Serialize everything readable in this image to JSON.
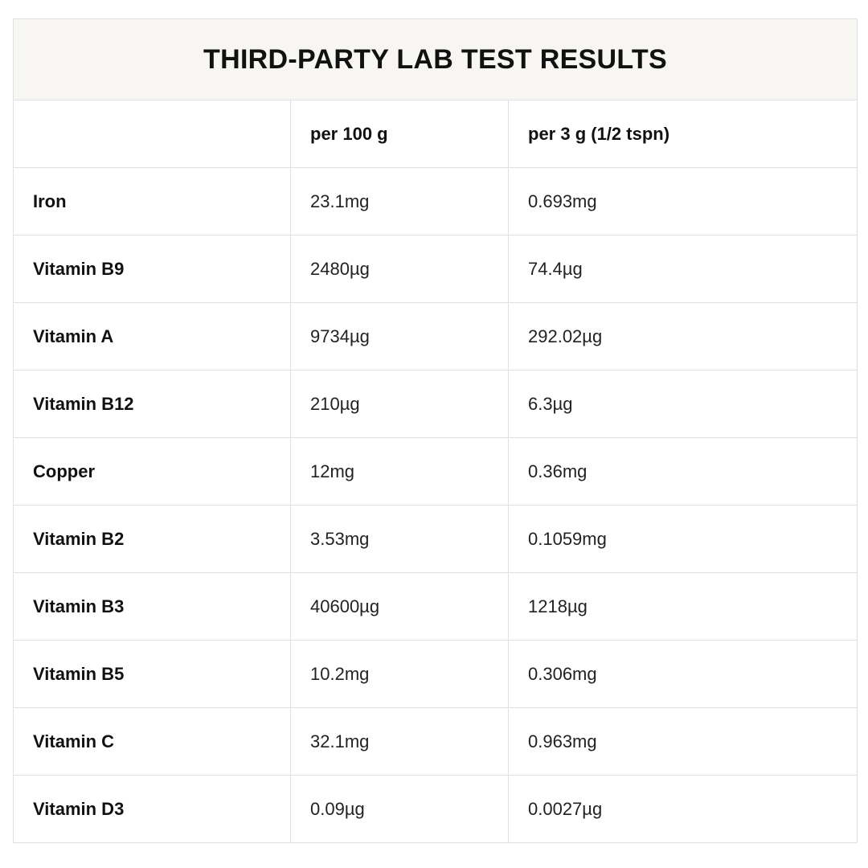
{
  "title": "THIRD-PARTY LAB TEST RESULTS",
  "columns": {
    "nutrient": "",
    "per_100g": "per 100 g",
    "per_serving": "per 3 g (1/2 tspn)"
  },
  "rows": [
    {
      "nutrient": "Iron",
      "per_100g": "23.1mg",
      "per_serving": "0.693mg"
    },
    {
      "nutrient": "Vitamin B9",
      "per_100g": "2480µg",
      "per_serving": "74.4µg"
    },
    {
      "nutrient": "Vitamin A",
      "per_100g": "9734µg",
      "per_serving": "292.02µg"
    },
    {
      "nutrient": "Vitamin B12",
      "per_100g": "210µg",
      "per_serving": "6.3µg"
    },
    {
      "nutrient": "Copper",
      "per_100g": "12mg",
      "per_serving": "0.36mg"
    },
    {
      "nutrient": "Vitamin B2",
      "per_100g": "3.53mg",
      "per_serving": "0.1059mg"
    },
    {
      "nutrient": "Vitamin B3",
      "per_100g": "40600µg",
      "per_serving": "1218µg"
    },
    {
      "nutrient": "Vitamin B5",
      "per_100g": "10.2mg",
      "per_serving": "0.306mg"
    },
    {
      "nutrient": "Vitamin C",
      "per_100g": "32.1mg",
      "per_serving": "0.963mg"
    },
    {
      "nutrient": "Vitamin D3",
      "per_100g": "0.09µg",
      "per_serving": "0.0027µg"
    }
  ]
}
